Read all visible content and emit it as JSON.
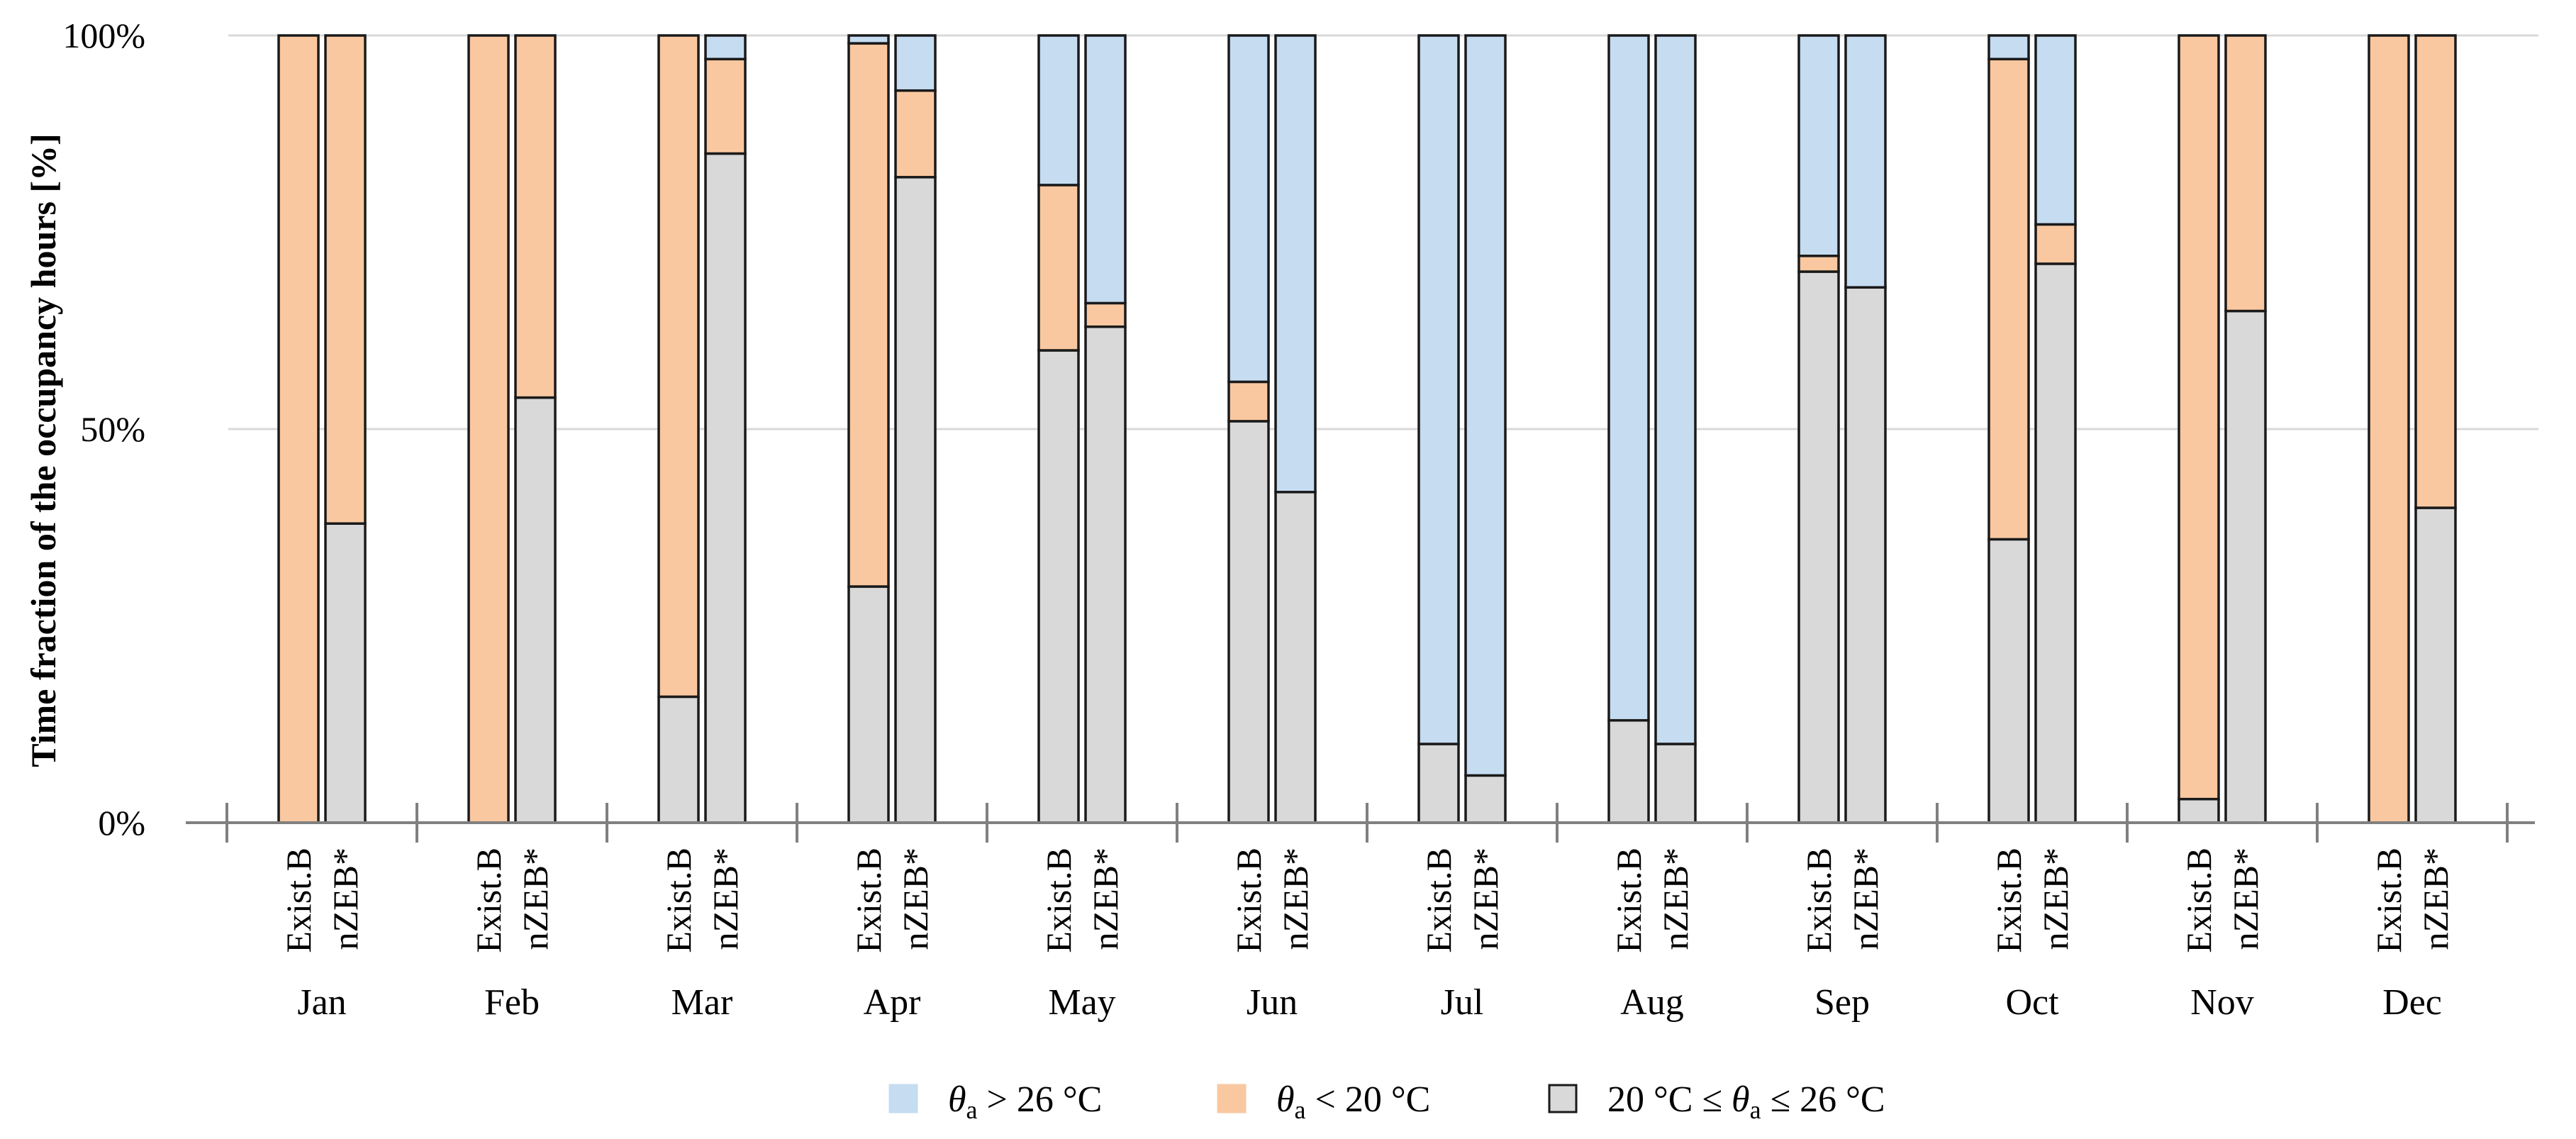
{
  "chart_data": {
    "type": "bar",
    "stacked": true,
    "title": "",
    "ylabel": "Time fraction of the occupancy hours [%]",
    "xlabel": "",
    "ylim": [
      0,
      100
    ],
    "yticks": [
      0,
      50,
      100
    ],
    "ytick_labels": [
      "0%",
      "50%",
      "100%"
    ],
    "grid": true,
    "legend_position": "bottom",
    "months": [
      "Jan",
      "Feb",
      "Mar",
      "Apr",
      "May",
      "Jun",
      "Jul",
      "Aug",
      "Sep",
      "Oct",
      "Nov",
      "Dec"
    ],
    "scenarios": [
      "Exist.B",
      "nZEB*"
    ],
    "series": [
      {
        "name": "20 °C ≤ θa ≤ 26 °C",
        "legend_parts": [
          "20 °C ≤ ",
          "θ",
          "a",
          " ≤ 26 °C"
        ],
        "color": "#d9d9d9",
        "values": {
          "Exist.B": [
            0,
            0,
            16,
            30,
            60,
            51,
            10,
            13,
            70,
            36,
            3,
            0
          ],
          "nZEB*": [
            38,
            54,
            85,
            82,
            63,
            42,
            6,
            10,
            68,
            71,
            65,
            40
          ]
        }
      },
      {
        "name": "θa < 20 °C",
        "legend_parts": [
          "θ",
          "a",
          " < 20 °C"
        ],
        "color": "#fac8a0",
        "values": {
          "Exist.B": [
            100,
            100,
            84,
            69,
            21,
            5,
            0,
            0,
            2,
            61,
            97,
            100
          ],
          "nZEB*": [
            62,
            46,
            12,
            11,
            3,
            0,
            0,
            0,
            0,
            5,
            35,
            60
          ]
        }
      },
      {
        "name": "θa > 26 °C",
        "legend_parts": [
          "θ",
          "a",
          " > 26 °C"
        ],
        "color": "#c5dcf1",
        "values": {
          "Exist.B": [
            0,
            0,
            0,
            1,
            19,
            44,
            90,
            87,
            28,
            3,
            0,
            0
          ],
          "nZEB*": [
            0,
            0,
            3,
            7,
            34,
            58,
            94,
            90,
            32,
            24,
            0,
            0
          ]
        }
      }
    ],
    "legend_order": [
      "θa > 26 °C",
      "θa < 20 °C",
      "20 °C ≤ θa ≤ 26 °C"
    ]
  }
}
